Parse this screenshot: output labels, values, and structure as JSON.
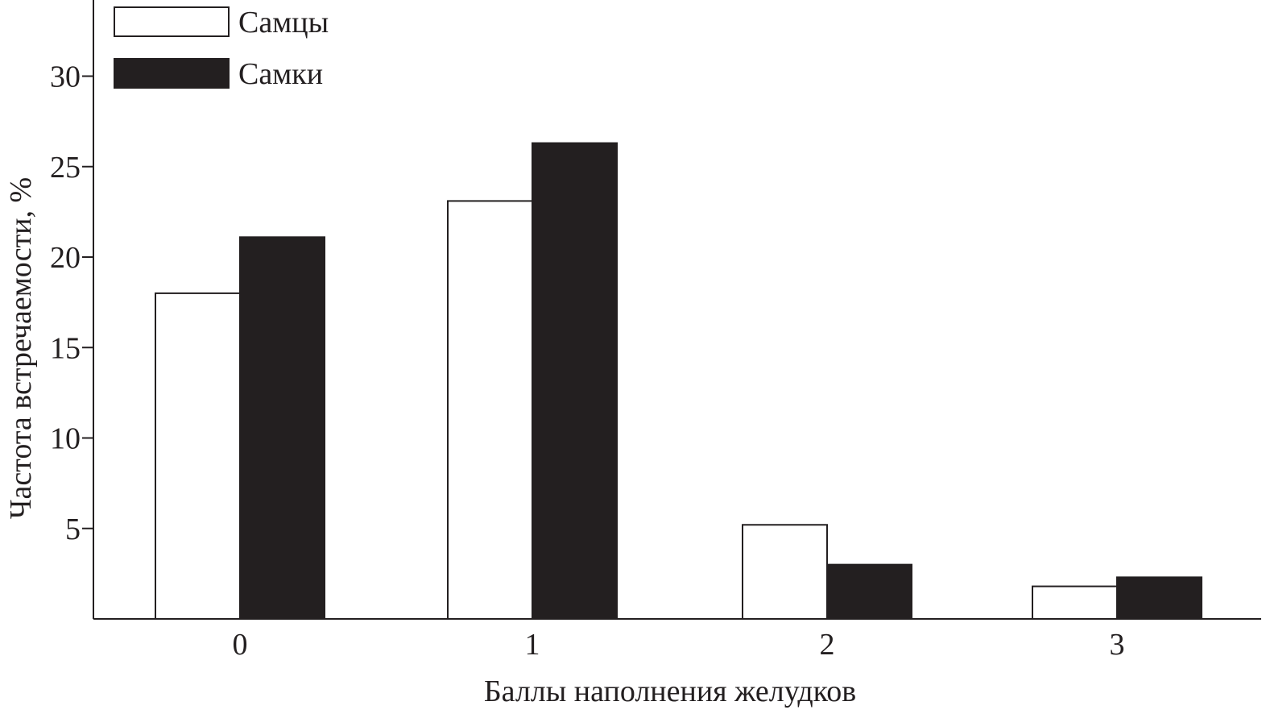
{
  "chart_data": {
    "type": "bar",
    "title": "",
    "xlabel": "Баллы наполнения желудков",
    "ylabel": "Частота встречаемости, %",
    "categories": [
      "0",
      "1",
      "2",
      "3"
    ],
    "ylim": [
      0,
      33
    ],
    "yticks": [
      "5",
      "10",
      "15",
      "20",
      "25",
      "30"
    ],
    "grid": false,
    "legend_position": "top-left",
    "series": [
      {
        "name": "Самцы",
        "values": [
          18,
          23.1,
          5.2,
          1.8
        ],
        "fill": "#ffffff",
        "stroke": "#231f20"
      },
      {
        "name": "Самки",
        "values": [
          21.1,
          26.3,
          3.0,
          2.3
        ],
        "fill": "#231f20",
        "stroke": "#231f20"
      }
    ]
  }
}
